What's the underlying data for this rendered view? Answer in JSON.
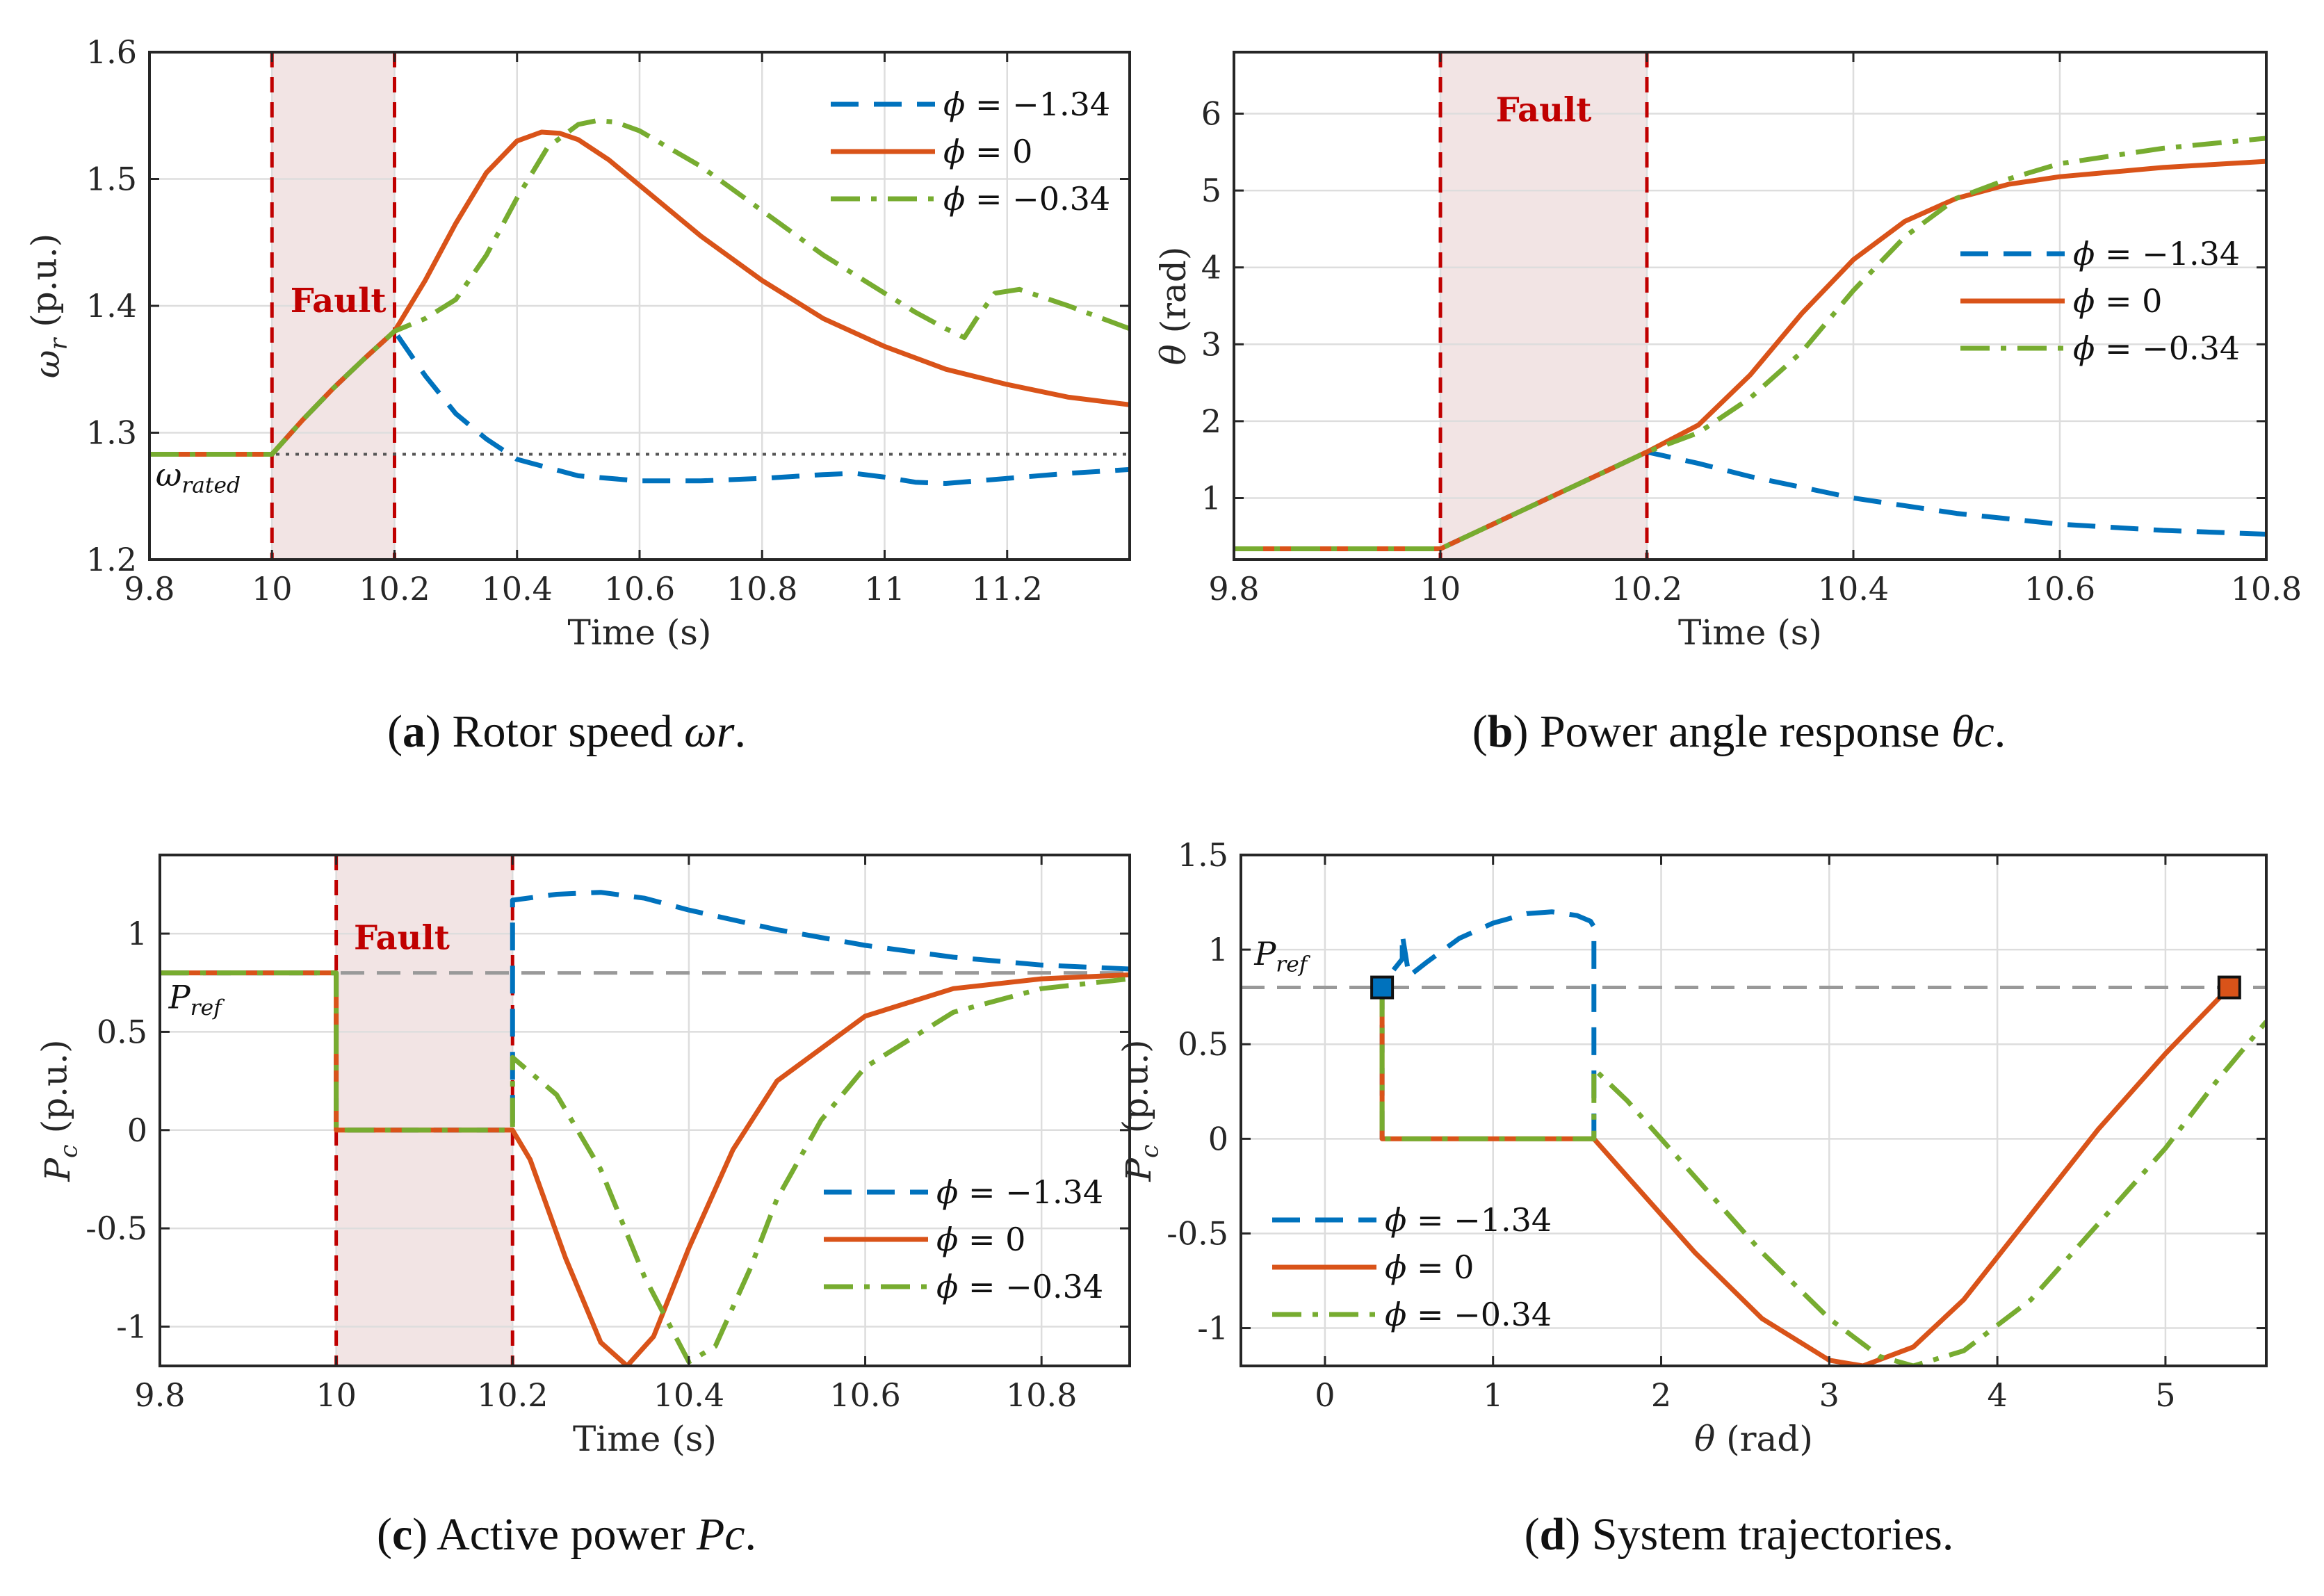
{
  "colors": {
    "blue": "#0072BD",
    "orange": "#D95319",
    "green": "#77AC30",
    "fault_red": "#C00000",
    "fault_fill": "#F2E4E4",
    "grid": "#DDDDDD",
    "ref_gray": "#999999"
  },
  "chart_data": [
    {
      "id": "a",
      "type": "line",
      "caption_letter": "a",
      "caption_text": " Rotor speed ",
      "caption_math": "ωr",
      "caption_end": ".",
      "xlabel": "Time (s)",
      "ylabel": "ωr (p.u.)",
      "xlim": [
        9.8,
        11.4
      ],
      "ylim": [
        1.2,
        1.6
      ],
      "xticks": [
        9.8,
        10,
        10.2,
        10.4,
        10.6,
        10.8,
        11,
        11.2
      ],
      "xtick_labels": [
        "9.8",
        "10",
        "10.2",
        "10.4",
        "10.6",
        "10.8",
        "11",
        "11.2"
      ],
      "yticks": [
        1.2,
        1.3,
        1.4,
        1.5,
        1.6
      ],
      "ytick_labels": [
        "1.2",
        "1.3",
        "1.4",
        "1.5",
        "1.6"
      ],
      "fault": {
        "x0": 10.0,
        "x1": 10.2,
        "label": "Fault",
        "label_x": 10.03,
        "label_y": 1.395
      },
      "ref_line": {
        "y": 1.283,
        "label": "ωrated",
        "label_x": 9.81,
        "label_y": 1.258,
        "style": "dotted"
      },
      "legend": {
        "placement": "top-right"
      },
      "series": [
        {
          "name": "ϕ = −1.34",
          "color": "blue",
          "style": "dashed",
          "x": [
            9.8,
            10.0,
            10.05,
            10.1,
            10.15,
            10.2,
            10.25,
            10.3,
            10.35,
            10.4,
            10.5,
            10.6,
            10.7,
            10.8,
            10.9,
            10.95,
            11.0,
            11.05,
            11.1,
            11.2,
            11.3,
            11.4
          ],
          "y": [
            1.283,
            1.283,
            1.31,
            1.335,
            1.358,
            1.38,
            1.345,
            1.315,
            1.295,
            1.279,
            1.266,
            1.262,
            1.262,
            1.264,
            1.267,
            1.268,
            1.265,
            1.261,
            1.26,
            1.264,
            1.268,
            1.271
          ]
        },
        {
          "name": "ϕ = 0",
          "color": "orange",
          "style": "solid",
          "x": [
            9.8,
            10.0,
            10.05,
            10.1,
            10.15,
            10.2,
            10.25,
            10.3,
            10.35,
            10.4,
            10.44,
            10.47,
            10.5,
            10.55,
            10.6,
            10.7,
            10.8,
            10.9,
            11.0,
            11.1,
            11.2,
            11.3,
            11.4
          ],
          "y": [
            1.283,
            1.283,
            1.31,
            1.335,
            1.358,
            1.38,
            1.42,
            1.465,
            1.505,
            1.53,
            1.537,
            1.536,
            1.531,
            1.515,
            1.495,
            1.455,
            1.42,
            1.39,
            1.368,
            1.35,
            1.338,
            1.328,
            1.322
          ]
        },
        {
          "name": "ϕ = −0.34",
          "color": "green",
          "style": "dashdot",
          "x": [
            9.8,
            10.0,
            10.05,
            10.1,
            10.15,
            10.2,
            10.25,
            10.3,
            10.35,
            10.4,
            10.45,
            10.5,
            10.53,
            10.56,
            10.6,
            10.7,
            10.8,
            10.9,
            11.0,
            11.05,
            11.1,
            11.13,
            11.15,
            11.18,
            11.22,
            11.3,
            11.4
          ],
          "y": [
            1.283,
            1.283,
            1.31,
            1.335,
            1.358,
            1.38,
            1.39,
            1.405,
            1.44,
            1.485,
            1.525,
            1.543,
            1.546,
            1.545,
            1.538,
            1.51,
            1.475,
            1.44,
            1.41,
            1.395,
            1.382,
            1.375,
            1.39,
            1.41,
            1.413,
            1.4,
            1.382
          ]
        }
      ]
    },
    {
      "id": "b",
      "type": "line",
      "caption_letter": "b",
      "caption_text": " Power angle response ",
      "caption_math": "θc",
      "caption_end": ".",
      "xlabel": "Time (s)",
      "ylabel": "θ (rad)",
      "xlim": [
        9.8,
        10.8
      ],
      "ylim": [
        0.2,
        6.8
      ],
      "xticks": [
        9.8,
        10,
        10.2,
        10.4,
        10.6,
        10.8
      ],
      "xtick_labels": [
        "9.8",
        "10",
        "10.2",
        "10.4",
        "10.6",
        "10.8"
      ],
      "yticks": [
        1,
        2,
        3,
        4,
        5,
        6
      ],
      "ytick_labels": [
        "1",
        "2",
        "3",
        "4",
        "5",
        "6"
      ],
      "fault": {
        "x0": 10.0,
        "x1": 10.2,
        "label": "Fault",
        "label_x": 10.1,
        "label_y": 5.9
      },
      "legend": {
        "placement": "right"
      },
      "series": [
        {
          "name": "ϕ = −1.34",
          "color": "blue",
          "style": "dashed",
          "x": [
            9.8,
            10.0,
            10.2,
            10.25,
            10.3,
            10.4,
            10.5,
            10.6,
            10.7,
            10.8
          ],
          "y": [
            0.34,
            0.34,
            1.6,
            1.45,
            1.28,
            1.0,
            0.8,
            0.66,
            0.58,
            0.53
          ]
        },
        {
          "name": "ϕ = 0",
          "color": "orange",
          "style": "solid",
          "x": [
            9.8,
            10.0,
            10.2,
            10.25,
            10.3,
            10.35,
            10.4,
            10.45,
            10.5,
            10.55,
            10.6,
            10.7,
            10.8
          ],
          "y": [
            0.34,
            0.34,
            1.6,
            1.95,
            2.6,
            3.4,
            4.1,
            4.6,
            4.9,
            5.08,
            5.18,
            5.3,
            5.38
          ]
        },
        {
          "name": "ϕ = −0.34",
          "color": "green",
          "style": "dashdot",
          "x": [
            9.8,
            10.0,
            10.2,
            10.25,
            10.3,
            10.35,
            10.4,
            10.45,
            10.5,
            10.55,
            10.6,
            10.7,
            10.8
          ],
          "y": [
            0.34,
            0.34,
            1.6,
            1.85,
            2.3,
            2.9,
            3.7,
            4.4,
            4.9,
            5.15,
            5.35,
            5.55,
            5.68
          ]
        }
      ]
    },
    {
      "id": "c",
      "type": "line",
      "caption_letter": "c",
      "caption_text": " Active power ",
      "caption_math": "Pc",
      "caption_end": ".",
      "xlabel": "Time (s)",
      "ylabel": "Pc (p.u.)",
      "xlim": [
        9.8,
        10.9
      ],
      "ylim": [
        -1.2,
        1.4
      ],
      "xticks": [
        9.8,
        10,
        10.2,
        10.4,
        10.6,
        10.8
      ],
      "xtick_labels": [
        "9.8",
        "10",
        "10.2",
        "10.4",
        "10.6",
        "10.8"
      ],
      "yticks": [
        -1,
        -0.5,
        0,
        0.5,
        1
      ],
      "ytick_labels": [
        "-1",
        "-0.5",
        "0",
        "0.5",
        "1"
      ],
      "fault": {
        "x0": 10.0,
        "x1": 10.2,
        "label": "Fault",
        "label_x": 10.02,
        "label_y": 0.92
      },
      "ref_line": {
        "y": 0.8,
        "label": "Pref",
        "label_x": 9.81,
        "label_y": 0.62,
        "style": "dashed"
      },
      "legend": {
        "placement": "bottom-right"
      },
      "series": [
        {
          "name": "ϕ = −1.34",
          "color": "blue",
          "style": "dashed",
          "x": [
            9.8,
            10.0,
            10.0,
            10.2,
            10.2,
            10.25,
            10.3,
            10.35,
            10.4,
            10.5,
            10.6,
            10.7,
            10.8,
            10.9
          ],
          "y": [
            0.8,
            0.8,
            0.0,
            0.0,
            1.17,
            1.2,
            1.21,
            1.18,
            1.12,
            1.02,
            0.94,
            0.88,
            0.84,
            0.82
          ]
        },
        {
          "name": "ϕ = 0",
          "color": "orange",
          "style": "solid",
          "x": [
            9.8,
            10.0,
            10.0,
            10.2,
            10.22,
            10.26,
            10.3,
            10.33,
            10.36,
            10.4,
            10.45,
            10.5,
            10.6,
            10.7,
            10.8,
            10.9
          ],
          "y": [
            0.8,
            0.8,
            0.0,
            0.0,
            -0.15,
            -0.65,
            -1.08,
            -1.2,
            -1.05,
            -0.6,
            -0.1,
            0.25,
            0.58,
            0.72,
            0.77,
            0.79
          ]
        },
        {
          "name": "ϕ = −0.34",
          "color": "green",
          "style": "dashdot",
          "x": [
            9.8,
            10.0,
            10.0,
            10.2,
            10.2,
            10.25,
            10.3,
            10.35,
            10.4,
            10.43,
            10.47,
            10.5,
            10.55,
            10.6,
            10.7,
            10.8,
            10.9
          ],
          "y": [
            0.8,
            0.8,
            0.0,
            0.0,
            0.37,
            0.18,
            -0.2,
            -0.75,
            -1.18,
            -1.1,
            -0.7,
            -0.35,
            0.05,
            0.32,
            0.6,
            0.72,
            0.77
          ]
        }
      ]
    },
    {
      "id": "d",
      "type": "line",
      "caption_letter": "d",
      "caption_text": " System trajectories.",
      "caption_math": "",
      "caption_end": "",
      "xlabel": "θ (rad)",
      "ylabel": "Pc (p.u.)",
      "xlim": [
        -0.5,
        5.6
      ],
      "ylim": [
        -1.2,
        1.5
      ],
      "xticks": [
        0,
        1,
        2,
        3,
        4,
        5
      ],
      "xtick_labels": [
        "0",
        "1",
        "2",
        "3",
        "4",
        "5"
      ],
      "yticks": [
        -1,
        -0.5,
        0,
        0.5,
        1,
        1.5
      ],
      "ytick_labels": [
        "-1",
        "-0.5",
        "0",
        "0.5",
        "1",
        "1.5"
      ],
      "ref_line": {
        "y": 0.8,
        "label": "Pref",
        "label_x": -0.42,
        "label_y": 0.92,
        "style": "dashed"
      },
      "legend": {
        "placement": "bottom-left"
      },
      "markers": [
        {
          "x": 0.34,
          "y": 0.8,
          "color": "blue"
        },
        {
          "x": 5.38,
          "y": 0.8,
          "color": "orange"
        }
      ],
      "series": [
        {
          "name": "ϕ = −1.34",
          "color": "blue",
          "style": "dashed",
          "x": [
            0.34,
            0.34,
            0.37,
            0.46,
            0.46,
            0.5,
            0.6,
            0.8,
            1.0,
            1.2,
            1.35,
            1.5,
            1.58,
            1.6,
            1.6
          ],
          "y": [
            0.0,
            0.8,
            0.85,
            0.95,
            1.08,
            0.86,
            0.93,
            1.06,
            1.14,
            1.19,
            1.2,
            1.18,
            1.15,
            1.12,
            0.0
          ]
        },
        {
          "name": "ϕ = 0",
          "color": "orange",
          "style": "solid",
          "x": [
            0.34,
            0.34,
            0.34,
            1.6,
            1.8,
            2.2,
            2.6,
            3.0,
            3.2,
            3.5,
            3.8,
            4.2,
            4.6,
            5.0,
            5.38
          ],
          "y": [
            0.8,
            0.8,
            0.0,
            0.0,
            -0.2,
            -0.6,
            -0.95,
            -1.17,
            -1.2,
            -1.1,
            -0.85,
            -0.4,
            0.05,
            0.45,
            0.8
          ]
        },
        {
          "name": "ϕ = −0.34",
          "color": "green",
          "style": "dashdot",
          "x": [
            0.34,
            0.34,
            1.6,
            1.6,
            1.8,
            2.2,
            2.6,
            3.0,
            3.3,
            3.5,
            3.8,
            4.2,
            4.6,
            5.0,
            5.3,
            5.6
          ],
          "y": [
            0.8,
            0.0,
            0.0,
            0.37,
            0.2,
            -0.2,
            -0.6,
            -0.95,
            -1.15,
            -1.2,
            -1.12,
            -0.85,
            -0.45,
            -0.05,
            0.3,
            0.62
          ]
        }
      ]
    }
  ]
}
